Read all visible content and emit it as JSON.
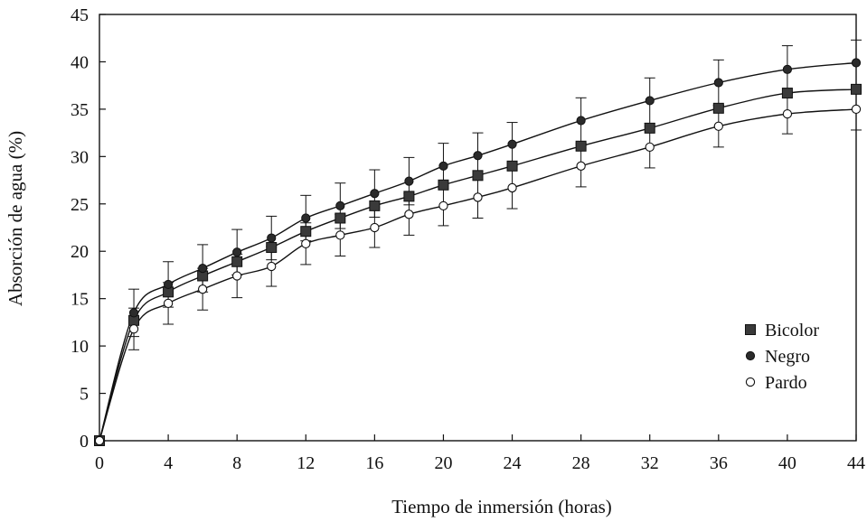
{
  "chart_data": {
    "type": "line",
    "title": "",
    "xlabel": "Tiempo de inmersión (horas)",
    "ylabel": "Absorción de agua (%)",
    "xlim": [
      0,
      44
    ],
    "ylim": [
      0,
      45
    ],
    "xticks": [
      0,
      4,
      8,
      12,
      16,
      20,
      24,
      28,
      32,
      36,
      40,
      44
    ],
    "yticks": [
      0,
      5,
      10,
      15,
      20,
      25,
      30,
      35,
      40,
      45
    ],
    "grid": false,
    "legend_position": "right",
    "series": [
      {
        "name": "Bicolor",
        "marker": "square",
        "x": [
          0,
          2,
          4,
          6,
          8,
          10,
          12,
          14,
          16,
          18,
          20,
          22,
          24,
          28,
          32,
          36,
          40,
          44
        ],
        "y": [
          0,
          12.7,
          15.7,
          17.4,
          18.9,
          20.4,
          22.1,
          23.5,
          24.8,
          25.8,
          27.0,
          28.0,
          29.0,
          31.1,
          33.0,
          35.1,
          36.7,
          37.1
        ]
      },
      {
        "name": "Negro",
        "marker": "filled-circle",
        "x": [
          0,
          2,
          4,
          6,
          8,
          10,
          12,
          14,
          16,
          18,
          20,
          22,
          24,
          28,
          32,
          36,
          40,
          44
        ],
        "y": [
          0,
          13.5,
          16.5,
          18.2,
          19.9,
          21.4,
          23.5,
          24.8,
          26.1,
          27.4,
          29.0,
          30.1,
          31.3,
          33.8,
          35.9,
          37.8,
          39.2,
          39.9
        ],
        "error": [
          0,
          2.5,
          2.4,
          2.5,
          2.4,
          2.3,
          2.4,
          2.4,
          2.5,
          2.5,
          2.4,
          2.4,
          2.3,
          2.4,
          2.4,
          2.4,
          2.5,
          2.4
        ]
      },
      {
        "name": "Pardo",
        "marker": "open-circle",
        "x": [
          0,
          2,
          4,
          6,
          8,
          10,
          12,
          14,
          16,
          18,
          20,
          22,
          24,
          28,
          32,
          36,
          40,
          44
        ],
        "y": [
          0,
          11.8,
          14.5,
          16.0,
          17.4,
          18.4,
          20.8,
          21.7,
          22.5,
          23.9,
          24.8,
          25.7,
          26.7,
          29.0,
          31.0,
          33.2,
          34.5,
          35.0
        ],
        "error": [
          0,
          2.2,
          2.2,
          2.2,
          2.3,
          2.1,
          2.2,
          2.2,
          2.1,
          2.2,
          2.1,
          2.2,
          2.2,
          2.2,
          2.2,
          2.2,
          2.1,
          2.2
        ]
      }
    ]
  }
}
